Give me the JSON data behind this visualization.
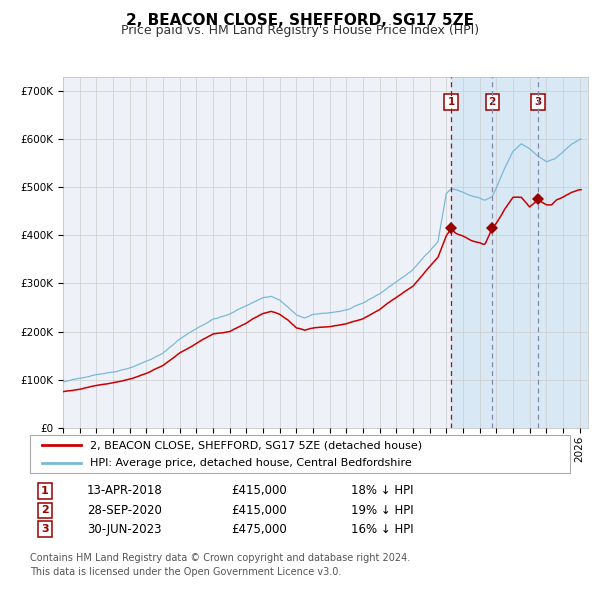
{
  "title": "2, BEACON CLOSE, SHEFFORD, SG17 5ZE",
  "subtitle": "Price paid vs. HM Land Registry's House Price Index (HPI)",
  "ylim": [
    0,
    730000
  ],
  "yticks": [
    0,
    100000,
    200000,
    300000,
    400000,
    500000,
    600000,
    700000
  ],
  "ytick_labels": [
    "£0",
    "£100K",
    "£200K",
    "£300K",
    "£400K",
    "£500K",
    "£600K",
    "£700K"
  ],
  "xlim_start": 1995.0,
  "xlim_end": 2026.5,
  "hpi_color": "#7ab8d9",
  "price_color": "#cc0000",
  "marker_color": "#990000",
  "vline1_color": "#cc0000",
  "vline23_color": "#8888aa",
  "shade_color": "#d8e8f4",
  "grid_color": "#cccccc",
  "bg_color": "#eef2f8",
  "sale1_year": 2018.28,
  "sale2_year": 2020.75,
  "sale3_year": 2023.5,
  "sale1_price": 415000,
  "sale2_price": 415000,
  "sale3_price": 475000,
  "legend_price_label": "2, BEACON CLOSE, SHEFFORD, SG17 5ZE (detached house)",
  "legend_hpi_label": "HPI: Average price, detached house, Central Bedfordshire",
  "table_rows": [
    [
      "1",
      "13-APR-2018",
      "£415,000",
      "18% ↓ HPI"
    ],
    [
      "2",
      "28-SEP-2020",
      "£415,000",
      "19% ↓ HPI"
    ],
    [
      "3",
      "30-JUN-2023",
      "£475,000",
      "16% ↓ HPI"
    ]
  ],
  "footer": "Contains HM Land Registry data © Crown copyright and database right 2024.\nThis data is licensed under the Open Government Licence v3.0.",
  "title_fontsize": 11,
  "subtitle_fontsize": 9,
  "tick_fontsize": 7.5,
  "legend_fontsize": 8,
  "table_fontsize": 8.5,
  "footer_fontsize": 7
}
